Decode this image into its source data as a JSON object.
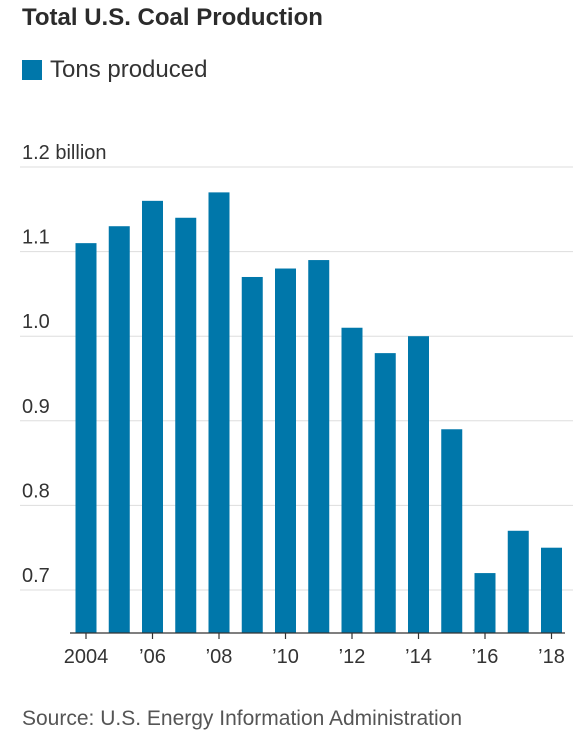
{
  "title": "Total U.S. Coal Production",
  "legend": {
    "label": "Tons produced"
  },
  "source": "Source: U.S. Energy Information Administration",
  "colors": {
    "bar": "#0077aa",
    "grid": "#dddddd",
    "axis": "#333333",
    "text": "#333333"
  },
  "chart_data": {
    "type": "bar",
    "categories": [
      "2004",
      "2005",
      "2006",
      "2007",
      "2008",
      "2009",
      "2010",
      "2011",
      "2012",
      "2013",
      "2014",
      "2015",
      "2016",
      "2017",
      "2018"
    ],
    "series": [
      {
        "name": "Tons produced",
        "values": [
          1.11,
          1.13,
          1.16,
          1.14,
          1.17,
          1.07,
          1.08,
          1.09,
          1.01,
          0.98,
          1.0,
          0.89,
          0.72,
          0.77,
          0.75
        ]
      }
    ],
    "yticks": [
      0.7,
      0.8,
      0.9,
      1.0,
      1.1,
      1.2
    ],
    "ytick_labels": [
      "0.7",
      "0.8",
      "0.9",
      "1.0",
      "1.1",
      "1.2 billion"
    ],
    "xtick_labels": [
      "2004",
      "",
      "’06",
      "",
      "’08",
      "",
      "’10",
      "",
      "’12",
      "",
      "’14",
      "",
      "’16",
      "",
      "’18"
    ],
    "ylim": [
      0.65,
      1.2
    ],
    "grid": true,
    "legend_position": "top-left"
  }
}
